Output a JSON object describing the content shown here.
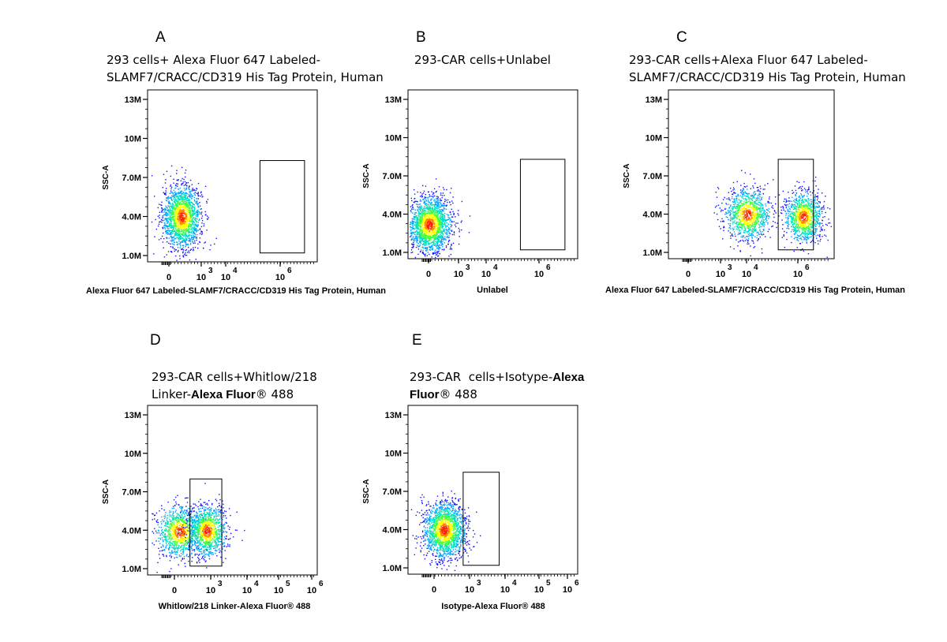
{
  "colors": {
    "density": [
      "#1010ff",
      "#00a0ff",
      "#00e0c0",
      "#40ff40",
      "#ffff00",
      "#ff8000",
      "#ff2000"
    ]
  },
  "chart_data": [
    {
      "type": "scatter",
      "panel": "A",
      "title_lines": [
        "293 cells+ Alexa Fluor 647 Labeled-",
        "SLAMF7/CRACC/CD319 His Tag Protein, Human"
      ],
      "xlabel": "Alexa Fluor 647 Labeled-SLAMF7/CRACC/CD319 His Tag Protein, Human",
      "ylabel": "SSC-A",
      "y_ticks": [
        "13M",
        "10M",
        "7.0M",
        "4.0M",
        "1.0M"
      ],
      "x_ticks": [
        {
          "base": "0",
          "exp": ""
        },
        {
          "base": "10",
          "exp": "3"
        },
        {
          "base": "10",
          "exp": "4"
        },
        {
          "base": "10",
          "exp": "6"
        }
      ],
      "populations": [
        {
          "x": 0.6,
          "y": 4.0,
          "sx": 0.45,
          "sy": 1.2,
          "n": 1800
        }
      ],
      "gate": {
        "x": [
          4.3,
          6.4
        ],
        "y": [
          1.2,
          8.3
        ]
      }
    },
    {
      "type": "scatter",
      "panel": "B",
      "title_lines": [
        "293-CAR cells+Unlabel"
      ],
      "xlabel": "Unlabel",
      "ylabel": "SSC-A",
      "y_ticks": [
        "13M",
        "10M",
        "7.0M",
        "4.0M",
        "1.0M"
      ],
      "x_ticks": [
        {
          "base": "0",
          "exp": ""
        },
        {
          "base": "10",
          "exp": "3"
        },
        {
          "base": "10",
          "exp": "4"
        },
        {
          "base": "10",
          "exp": "6"
        }
      ],
      "populations": [
        {
          "x": 0.0,
          "y": 3.2,
          "sx": 0.5,
          "sy": 1.1,
          "n": 2000
        }
      ],
      "gate": {
        "x": [
          4.3,
          6.4
        ],
        "y": [
          1.2,
          8.3
        ]
      }
    },
    {
      "type": "scatter",
      "panel": "C",
      "title_lines": [
        "293-CAR    cells+Alexa    Fluor    647    Labeled-",
        "SLAMF7/CRACC/CD319 His Tag Protein, Human"
      ],
      "xlabel": "Alexa Fluor 647 Labeled-SLAMF7/CRACC/CD319 His Tag Protein, Human",
      "ylabel": "SSC-A",
      "y_ticks": [
        "13M",
        "10M",
        "7.0M",
        "4.0M",
        "1.0M"
      ],
      "x_ticks": [
        {
          "base": "0",
          "exp": ""
        },
        {
          "base": "10",
          "exp": "3"
        },
        {
          "base": "10",
          "exp": "4"
        },
        {
          "base": "10",
          "exp": "6"
        }
      ],
      "populations": [
        {
          "x": 2.8,
          "y": 4.0,
          "sx": 0.55,
          "sy": 1.0,
          "n": 1100
        },
        {
          "x": 5.5,
          "y": 3.8,
          "sx": 0.45,
          "sy": 1.0,
          "n": 1100
        }
      ],
      "gate": {
        "x": [
          4.3,
          6.0
        ],
        "y": [
          1.2,
          8.3
        ]
      }
    },
    {
      "type": "scatter",
      "panel": "D",
      "title_lines": [
        "293-CAR  cells+Whitlow/218",
        "Linker-Alexa Fluor® 488"
      ],
      "xlabel": "Whitlow/218 Linker-Alexa Fluor® 488",
      "ylabel": "SSC-A",
      "y_ticks": [
        "13M",
        "10M",
        "7.0M",
        "4.0M",
        "1.0M"
      ],
      "x_ticks": [
        {
          "base": "0",
          "exp": ""
        },
        {
          "base": "10",
          "exp": "3"
        },
        {
          "base": "10",
          "exp": "4"
        },
        {
          "base": "10",
          "exp": "5"
        },
        {
          "base": "10",
          "exp": "6"
        }
      ],
      "populations": [
        {
          "x": 0.5,
          "y": 3.9,
          "sx": 0.55,
          "sy": 1.0,
          "n": 1100
        },
        {
          "x": 1.8,
          "y": 4.0,
          "sx": 0.45,
          "sy": 1.0,
          "n": 1100
        }
      ],
      "gate": {
        "x": [
          1.0,
          2.5
        ],
        "y": [
          1.2,
          8.0
        ]
      }
    },
    {
      "type": "scatter",
      "panel": "E",
      "title_lines": [
        "293-CAR  cells+Isotype-Alexa",
        "Fluor® 488"
      ],
      "xlabel": "Isotype-Alexa Fluor® 488",
      "ylabel": "SSC-A",
      "y_ticks": [
        "13M",
        "10M",
        "7.0M",
        "4.0M",
        "1.0M"
      ],
      "x_ticks": [
        {
          "base": "0",
          "exp": ""
        },
        {
          "base": "10",
          "exp": "3"
        },
        {
          "base": "10",
          "exp": "4"
        },
        {
          "base": "10",
          "exp": "5"
        },
        {
          "base": "10",
          "exp": "6"
        }
      ],
      "populations": [
        {
          "x": 0.7,
          "y": 4.0,
          "sx": 0.5,
          "sy": 1.1,
          "n": 1800
        }
      ],
      "gate": {
        "x": [
          1.6,
          3.3
        ],
        "y": [
          1.2,
          8.5
        ]
      }
    }
  ]
}
